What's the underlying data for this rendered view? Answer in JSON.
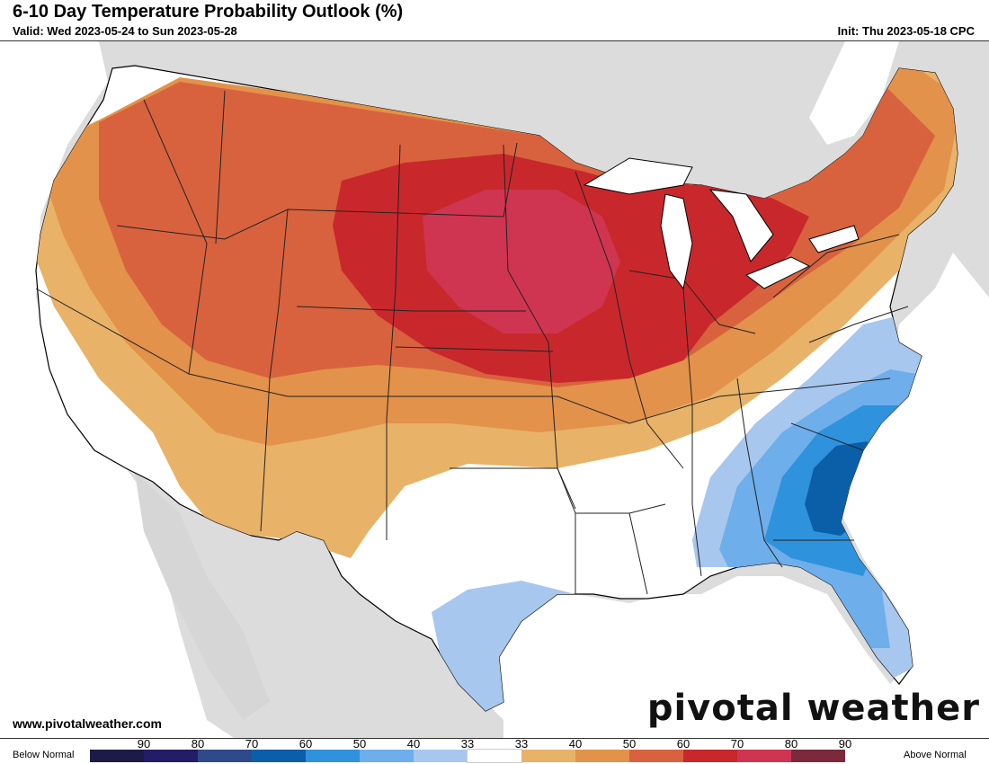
{
  "header": {
    "title": "6-10 Day Temperature Probability Outlook (%)",
    "valid": "Valid: Wed 2023-05-24 to Sun 2023-05-28",
    "init": "Init: Thu 2023-05-18 CPC"
  },
  "footer": {
    "site": "www.pivotalweather.com",
    "brand": "pivotal weather"
  },
  "legend": {
    "below_label": "Below Normal",
    "above_label": "Above Normal",
    "below_bins": [
      {
        "label": "90",
        "color": "#1e1a48"
      },
      {
        "label": "80",
        "color": "#231c66"
      },
      {
        "label": "70",
        "color": "#2f4a8a"
      },
      {
        "label": "60",
        "color": "#0b5fa8"
      },
      {
        "label": "50",
        "color": "#2f92dc"
      },
      {
        "label": "40",
        "color": "#6eaeea"
      },
      {
        "label": "33",
        "color": "#a7c7ee"
      }
    ],
    "neutral": {
      "label": "33",
      "color": "#ffffff"
    },
    "above_bins": [
      {
        "label": "40",
        "color": "#e8b268"
      },
      {
        "label": "50",
        "color": "#e2924a"
      },
      {
        "label": "60",
        "color": "#d8623e"
      },
      {
        "label": "70",
        "color": "#c8282c"
      },
      {
        "label": "80",
        "color": "#cf3550"
      },
      {
        "label": "90",
        "color": "#7a2a3a"
      }
    ]
  },
  "map": {
    "background_color": "#d9d9d9",
    "land_color": "#ffffff",
    "water_color": "#ffffff"
  }
}
